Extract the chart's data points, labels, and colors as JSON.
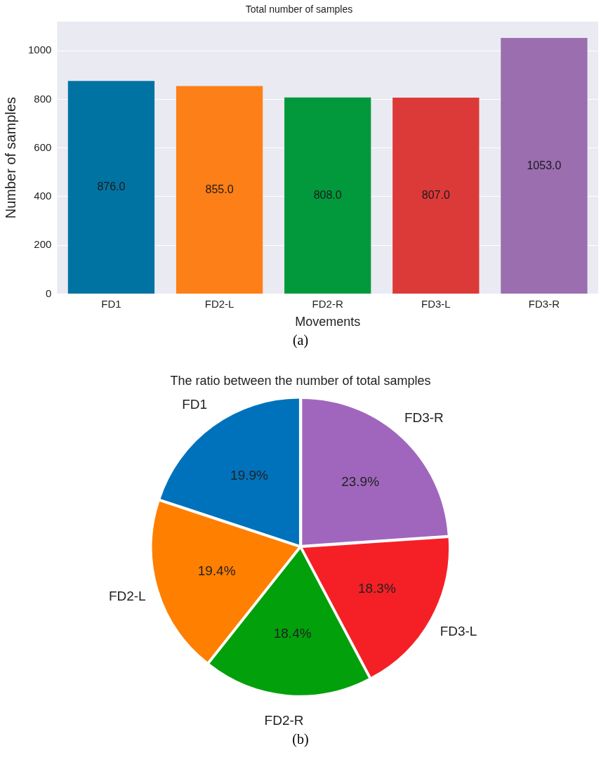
{
  "chart_data": [
    {
      "type": "bar",
      "title": "Total number of samples",
      "xlabel": "Movements",
      "ylabel": "Number of samples",
      "categories": [
        "FD1",
        "FD2-L",
        "FD2-R",
        "FD3-L",
        "FD3-R"
      ],
      "values": [
        876,
        855,
        808,
        807,
        1053
      ],
      "value_labels": [
        "876.0",
        "855.0",
        "808.0",
        "807.0",
        "1053.0"
      ],
      "colors": [
        "#0173a2",
        "#fd7f17",
        "#02993c",
        "#dc3a38",
        "#9b6eb0"
      ],
      "ylim": [
        0,
        1120
      ],
      "yticks": [
        0,
        200,
        400,
        600,
        800,
        1000
      ],
      "grid": "y",
      "annotations": [
        "(a)"
      ]
    },
    {
      "type": "pie",
      "title": "The ratio between the number of total samples",
      "categories": [
        "FD1",
        "FD2-L",
        "FD2-R",
        "FD3-L",
        "FD3-R"
      ],
      "values": [
        19.9,
        19.4,
        18.4,
        18.3,
        23.9
      ],
      "value_labels": [
        "19.9%",
        "19.4%",
        "18.4%",
        "18.3%",
        "23.9%"
      ],
      "colors": [
        "#0072bb",
        "#ff7f00",
        "#02a00b",
        "#f52026",
        "#a066bd"
      ],
      "annotations": [
        "(b)"
      ]
    }
  ]
}
